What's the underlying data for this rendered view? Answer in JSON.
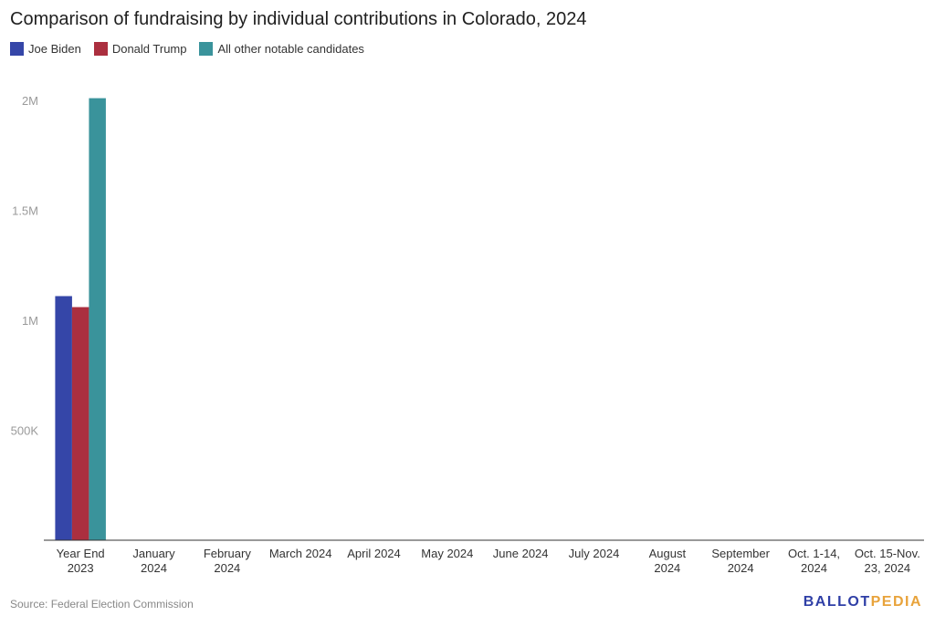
{
  "title": "Comparison of fundraising by individual contributions in Colorado, 2024",
  "legend": [
    {
      "label": "Joe Biden",
      "color": "#3546a8"
    },
    {
      "label": "Donald Trump",
      "color": "#ab2f3f"
    },
    {
      "label": "All other notable candidates",
      "color": "#3a939b"
    }
  ],
  "source": "Source: Federal Election Commission",
  "logo": {
    "ballot": "BALLOT",
    "pedia": "PEDIA"
  },
  "chart_data": {
    "type": "bar",
    "title": "Comparison of fundraising by individual contributions in Colorado, 2024",
    "xlabel": "",
    "ylabel": "",
    "ylim": [
      0,
      2000000
    ],
    "yticks": [
      500000,
      1000000,
      1500000,
      2000000
    ],
    "ytick_labels": [
      "500K",
      "1M",
      "1.5M",
      "2M"
    ],
    "categories": [
      [
        "Year End",
        "2023"
      ],
      [
        "January",
        "2024"
      ],
      [
        "February",
        "2024"
      ],
      [
        "March 2024"
      ],
      [
        "April 2024"
      ],
      [
        "May 2024"
      ],
      [
        "June 2024"
      ],
      [
        "July 2024"
      ],
      [
        "August",
        "2024"
      ],
      [
        "September",
        "2024"
      ],
      [
        "Oct. 1-14,",
        "2024"
      ],
      [
        "Oct. 15-Nov.",
        "23, 2024"
      ]
    ],
    "series": [
      {
        "name": "Joe Biden",
        "color": "#3546a8",
        "values": [
          1110000,
          0,
          0,
          0,
          0,
          0,
          0,
          0,
          0,
          0,
          0,
          0
        ]
      },
      {
        "name": "Donald Trump",
        "color": "#ab2f3f",
        "values": [
          1060000,
          0,
          0,
          0,
          0,
          0,
          0,
          0,
          0,
          0,
          0,
          0
        ]
      },
      {
        "name": "All other notable candidates",
        "color": "#3a939b",
        "values": [
          2010000,
          0,
          0,
          0,
          0,
          0,
          0,
          0,
          0,
          0,
          0,
          0
        ]
      }
    ]
  }
}
